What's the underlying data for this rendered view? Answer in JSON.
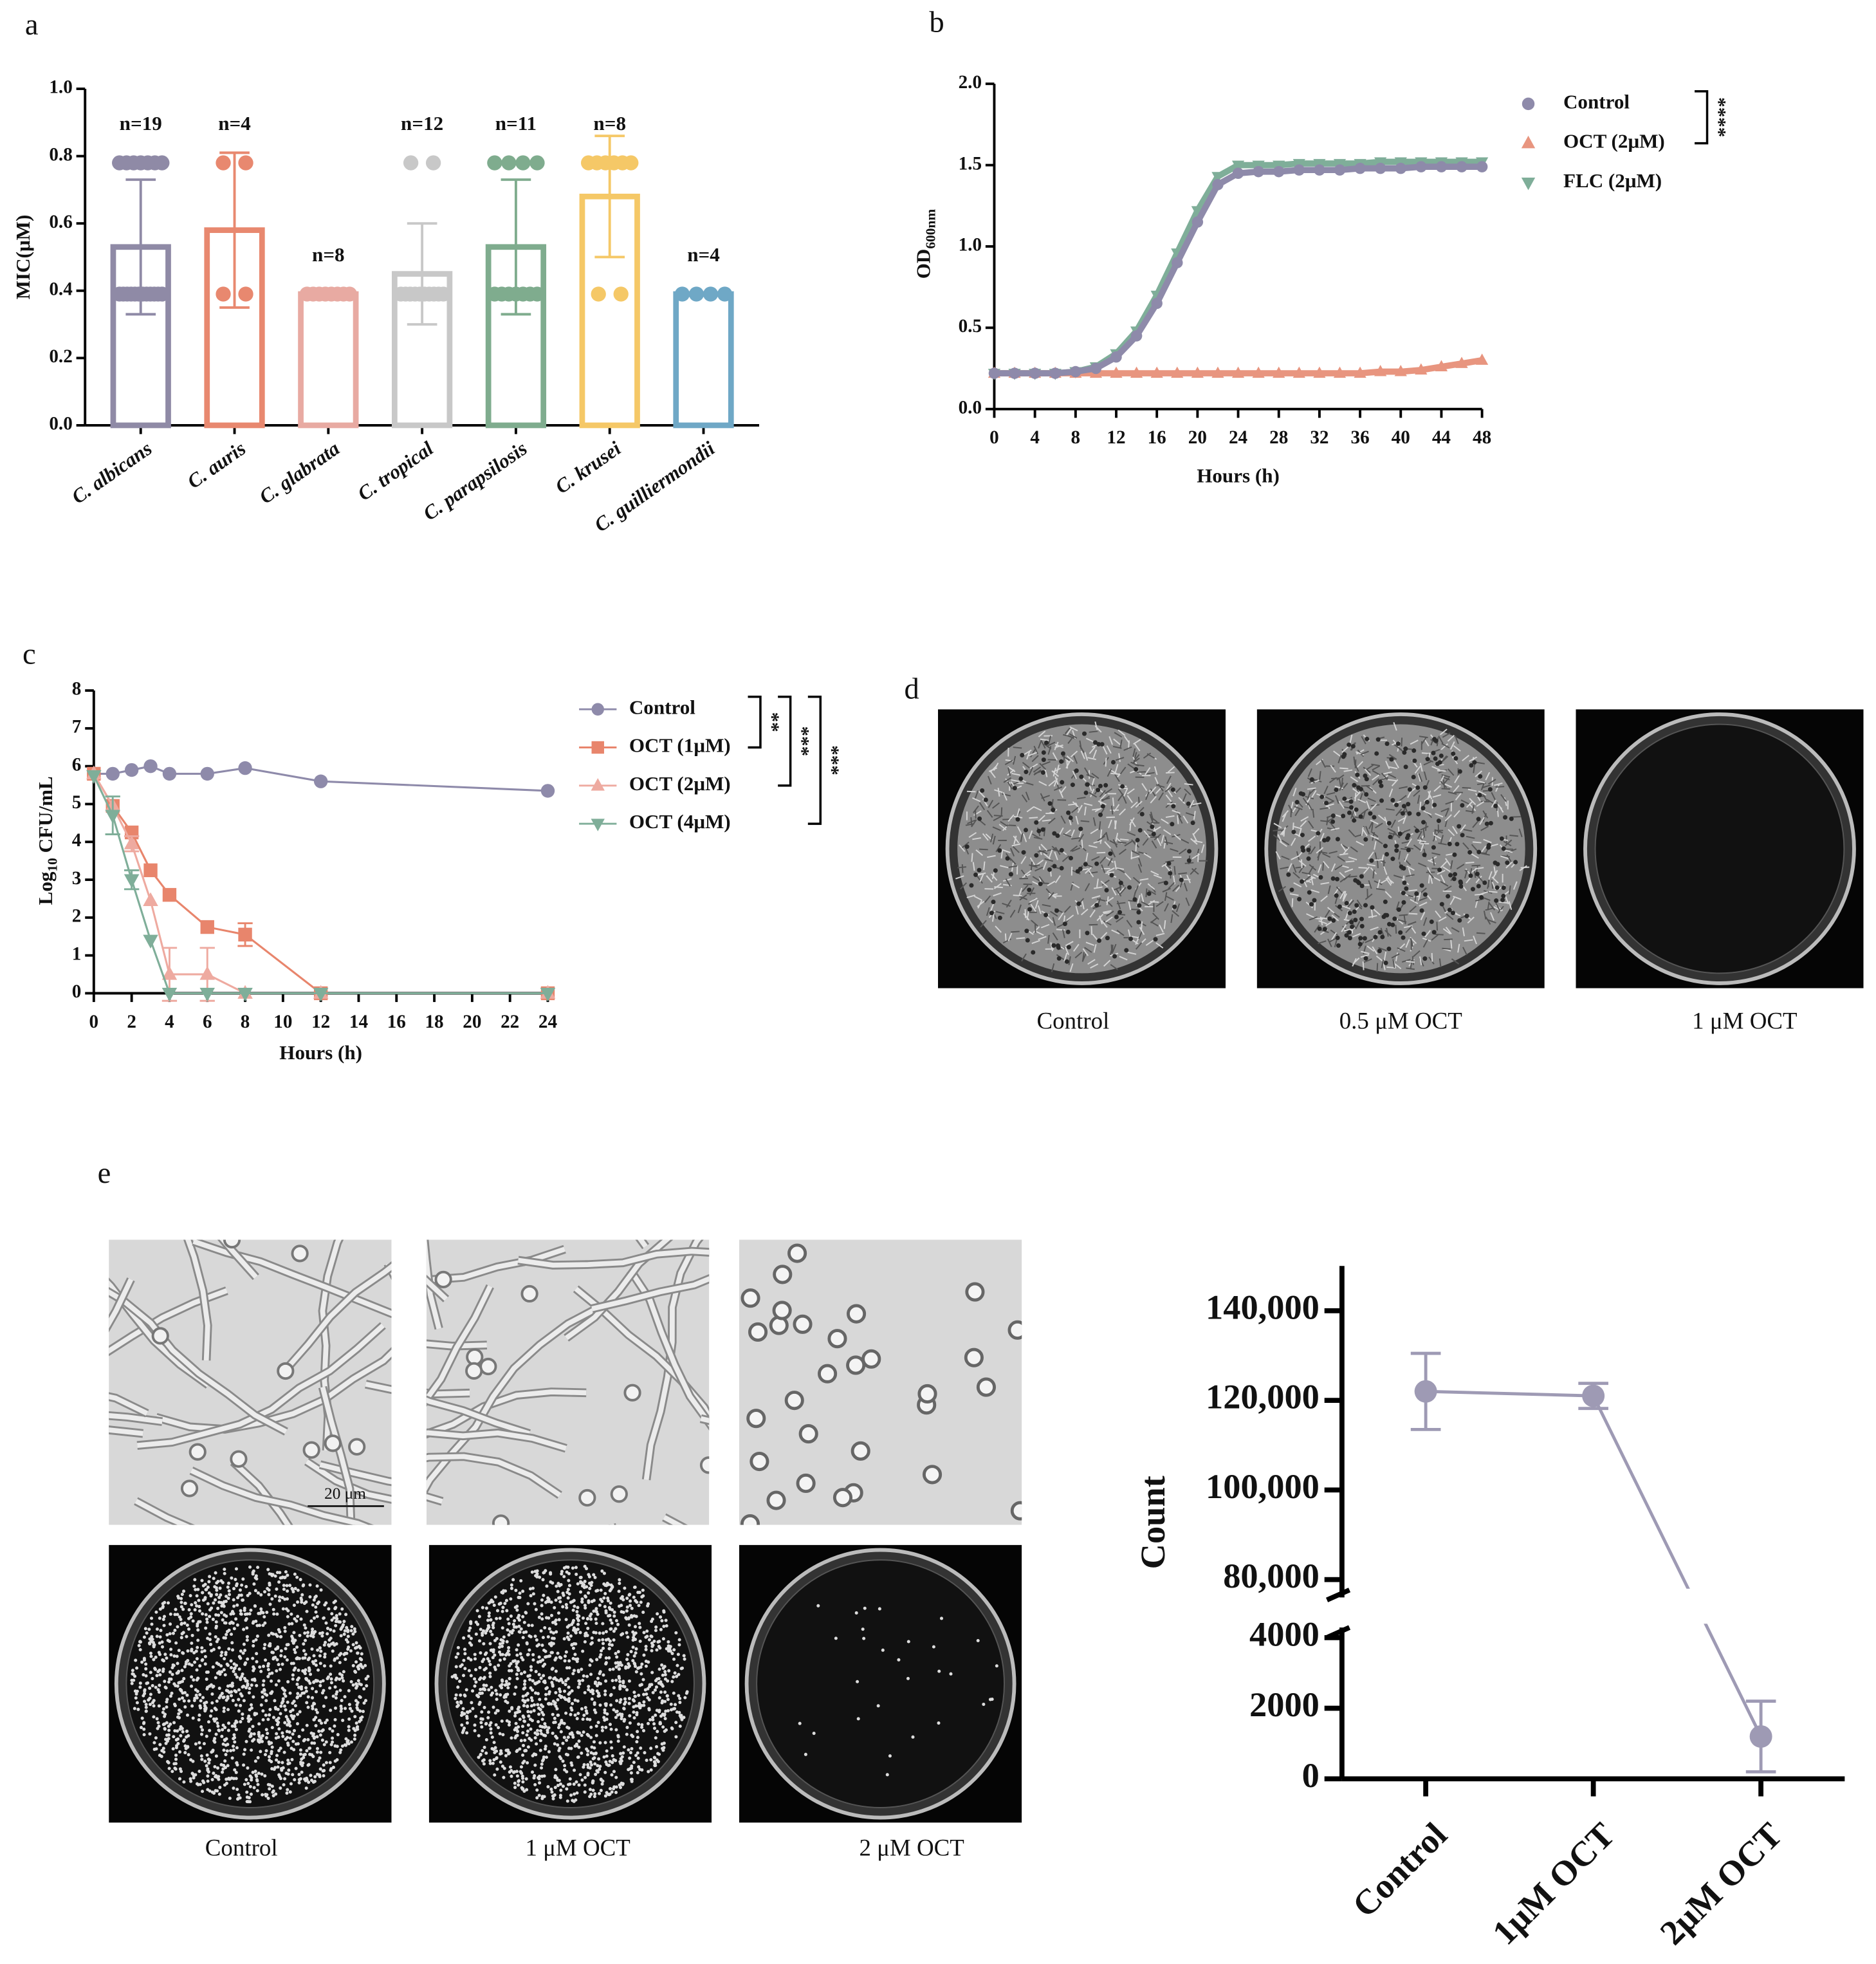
{
  "chart_data": [
    {
      "panel": "a",
      "type": "bar",
      "y_label": "MIC(μM)",
      "categories": [
        "C. albicans",
        "C. auris",
        "C. glabrata",
        "C. tropical",
        "C. parapsilosis",
        "C. krusei",
        "C. guilliermondii"
      ],
      "values": [
        0.53,
        0.58,
        0.39,
        0.45,
        0.53,
        0.68,
        0.39
      ],
      "errors": [
        0.2,
        0.23,
        0,
        0.15,
        0.2,
        0.18,
        0
      ],
      "points": [
        [
          0.78,
          0.78,
          0.78,
          0.78,
          0.78,
          0.78,
          0.78,
          0.39,
          0.39,
          0.39,
          0.39,
          0.39,
          0.39,
          0.39,
          0.39,
          0.39,
          0.39,
          0.39,
          0.39
        ],
        [
          0.78,
          0.78,
          0.39,
          0.39
        ],
        [
          0.39,
          0.39,
          0.39,
          0.39,
          0.39,
          0.39,
          0.39,
          0.39
        ],
        [
          0.78,
          0.78,
          0.39,
          0.39,
          0.39,
          0.39,
          0.39,
          0.39,
          0.39,
          0.39,
          0.39,
          0.39
        ],
        [
          0.78,
          0.78,
          0.78,
          0.78,
          0.39,
          0.39,
          0.39,
          0.39,
          0.39,
          0.39,
          0.39
        ],
        [
          0.78,
          0.78,
          0.78,
          0.78,
          0.78,
          0.78,
          0.39,
          0.39
        ],
        [
          0.39,
          0.39,
          0.39,
          0.39
        ]
      ],
      "n_labels": [
        "n=19",
        "n=4",
        "n=8",
        "n=12",
        "n=11",
        "n=8",
        "n=4"
      ],
      "colors": [
        "#8f8aa6",
        "#e8886f",
        "#e8aaa2",
        "#c8c8c8",
        "#7fac8e",
        "#f5c867",
        "#6fa8c6"
      ],
      "ylim": [
        0,
        1
      ],
      "yticks": [
        {
          "value": 0,
          "label": "0.0"
        },
        0.2,
        0.4,
        0.6,
        0.8,
        {
          "value": 1,
          "label": "1.0"
        }
      ]
    },
    {
      "panel": "b",
      "type": "line",
      "x_label": "Hours (h)",
      "y_label": "OD",
      "y_label_sub": "600nm",
      "significance": [
        "****"
      ],
      "x": [
        0,
        2,
        4,
        6,
        8,
        10,
        12,
        14,
        16,
        18,
        20,
        22,
        24,
        26,
        28,
        30,
        32,
        34,
        36,
        38,
        40,
        42,
        44,
        46,
        48
      ],
      "xlim": [
        0,
        48
      ],
      "xticks": [
        0,
        4,
        8,
        12,
        16,
        20,
        24,
        28,
        32,
        36,
        40,
        44,
        48
      ],
      "ylim": [
        0,
        2
      ],
      "yticks": [
        {
          "value": 0,
          "label": "0.0"
        },
        0.5,
        {
          "value": 1,
          "label": "1.0"
        },
        1.5,
        {
          "value": 2,
          "label": "2.0"
        }
      ],
      "series": [
        {
          "name": "Control",
          "color": "#8e8aaa",
          "marker": "circle",
          "values": [
            0.22,
            0.22,
            0.22,
            0.22,
            0.23,
            0.25,
            0.32,
            0.45,
            0.65,
            0.9,
            1.15,
            1.38,
            1.45,
            1.46,
            1.46,
            1.47,
            1.47,
            1.47,
            1.48,
            1.48,
            1.48,
            1.49,
            1.49,
            1.49,
            1.49
          ]
        },
        {
          "name": "OCT (2μM)",
          "color": "#e8957f",
          "marker": "triangle",
          "values": [
            0.22,
            0.22,
            0.22,
            0.22,
            0.22,
            0.22,
            0.22,
            0.22,
            0.22,
            0.22,
            0.22,
            0.22,
            0.22,
            0.22,
            0.22,
            0.22,
            0.22,
            0.22,
            0.22,
            0.23,
            0.23,
            0.24,
            0.26,
            0.28,
            0.3
          ]
        },
        {
          "name": "FLC (2μM)",
          "color": "#7fae99",
          "marker": "triangle-down",
          "values": [
            0.22,
            0.22,
            0.22,
            0.22,
            0.23,
            0.26,
            0.34,
            0.48,
            0.7,
            0.96,
            1.22,
            1.43,
            1.5,
            1.5,
            1.5,
            1.51,
            1.51,
            1.51,
            1.51,
            1.52,
            1.52,
            1.52,
            1.52,
            1.52,
            1.52
          ]
        }
      ]
    },
    {
      "panel": "c",
      "type": "line",
      "x_label": "Hours (h)",
      "y_label": "Log",
      "y_label_sub": "10",
      "y_label_rest": "CFU/mL",
      "significance": [
        "**",
        "***",
        "***"
      ],
      "x": [
        0,
        1,
        2,
        3,
        4,
        6,
        8,
        12,
        24
      ],
      "xlim": [
        0,
        24
      ],
      "xticks": [
        0,
        2,
        4,
        6,
        8,
        10,
        12,
        14,
        16,
        18,
        20,
        22,
        24
      ],
      "ylim": [
        0,
        8
      ],
      "yticks": [
        0,
        1,
        2,
        3,
        4,
        5,
        6,
        7,
        8
      ],
      "series": [
        {
          "name": "Control",
          "color": "#8e8aaa",
          "marker": "circle",
          "values": [
            5.8,
            5.8,
            5.9,
            6.0,
            5.8,
            5.8,
            5.95,
            5.6,
            5.35
          ]
        },
        {
          "name": "OCT (1μM)",
          "color": "#e8856c",
          "marker": "square",
          "values": [
            5.8,
            4.95,
            4.25,
            3.25,
            2.6,
            1.75,
            1.55,
            0,
            0
          ],
          "errors": [
            null,
            null,
            null,
            null,
            null,
            null,
            0.3,
            null,
            null
          ]
        },
        {
          "name": "OCT (2μM)",
          "color": "#eeaaa0",
          "marker": "triangle",
          "values": [
            5.8,
            4.95,
            3.95,
            2.45,
            0.5,
            0.5,
            0,
            0,
            0
          ],
          "errors": [
            null,
            null,
            0.2,
            null,
            0.7,
            0.7,
            null,
            null,
            null
          ]
        },
        {
          "name": "OCT (4μM)",
          "color": "#7fae99",
          "marker": "triangle-down",
          "values": [
            5.75,
            4.7,
            3.0,
            1.4,
            0,
            0,
            0,
            0,
            0
          ],
          "errors": [
            null,
            0.5,
            0.25,
            null,
            null,
            null,
            null,
            null,
            null
          ]
        }
      ]
    },
    {
      "panel": "d",
      "type": "image",
      "labels": [
        "Control",
        "0.5 μM OCT",
        "1 μM OCT"
      ]
    },
    {
      "panel": "e",
      "type": "image",
      "labels": [
        "Control",
        "1 μM OCT",
        "2 μM OCT"
      ],
      "scale_bar": "20 μm"
    },
    {
      "type": "line",
      "y_label": "Count",
      "categories": [
        "Control",
        "1μM OCT",
        "2μM OCT"
      ],
      "values": [
        122000,
        121000,
        1200
      ],
      "errors": [
        8500,
        2800,
        1000
      ],
      "color": "#9e9ab4",
      "ylim": [
        0,
        150000
      ],
      "y_break": [
        4500,
        76000
      ],
      "yticks": [
        0,
        2000,
        4000,
        {
          "value": 80000,
          "label": "80,000"
        },
        {
          "value": 100000,
          "label": "100,000"
        },
        {
          "value": 120000,
          "label": "120,000"
        },
        {
          "value": 140000,
          "label": "140,000"
        }
      ]
    }
  ]
}
